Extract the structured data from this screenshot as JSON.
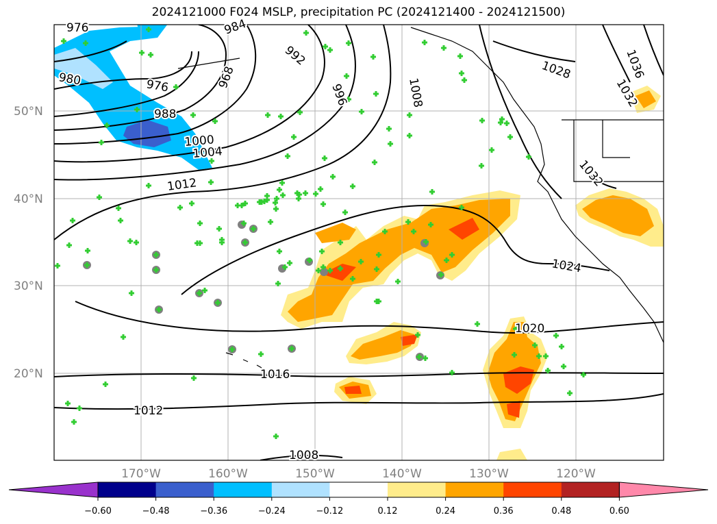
{
  "title": "2024121000 F024 MSLP, precipitation PC (2024121400 - 2024121500)",
  "map": {
    "lat_labels": [
      "50°N",
      "40°N",
      "30°N",
      "20°N"
    ],
    "lon_labels": [
      "170°W",
      "160°W",
      "150°W",
      "140°W",
      "130°W",
      "120°W"
    ],
    "contour_labels": [
      "976",
      "984",
      "992",
      "980",
      "976",
      "968",
      "996",
      "1008",
      "1028",
      "1036",
      "1032",
      "988",
      "1000",
      "1004",
      "1012",
      "1032",
      "1024",
      "1020",
      "1016",
      "1012",
      "1008"
    ]
  },
  "colorbar": {
    "ticks": [
      "−0.60",
      "−0.48",
      "−0.36",
      "−0.24",
      "−0.12",
      "0.12",
      "0.24",
      "0.36",
      "0.48",
      "0.60"
    ],
    "colors": [
      "#9932cc",
      "#00008b",
      "#3a5fcd",
      "#00bfff",
      "#b0e2ff",
      "#ffffff",
      "#ffec8b",
      "#ffa500",
      "#ff4500",
      "#b22222",
      "#ff88aa"
    ]
  },
  "colors": {
    "mslp_contour": "#000000",
    "station_marker": "#32cd32",
    "grid": "#b0b0b0",
    "axis_label": "#808080"
  }
}
